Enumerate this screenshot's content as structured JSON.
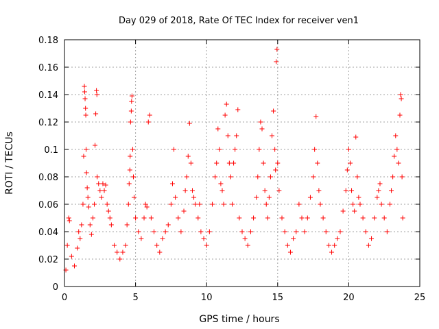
{
  "chart_data": {
    "type": "scatter",
    "title": "Day 029 of 2018, Rate Of TEC Index for receiver ven1",
    "xlabel": "GPS time / hours",
    "ylabel": "ROTI / TECUs",
    "xlim": [
      0,
      25
    ],
    "ylim": [
      0,
      0.18
    ],
    "xticks": [
      0,
      5,
      10,
      15,
      20,
      25
    ],
    "yticks": [
      0,
      0.02,
      0.04,
      0.06,
      0.08,
      0.1,
      0.12,
      0.14,
      0.16,
      0.18
    ],
    "xtick_labels": [
      "0",
      "5",
      "10",
      "15",
      "20",
      "25"
    ],
    "ytick_labels": [
      "0",
      "0.02",
      "0.04",
      "0.06",
      "0.08",
      "0.1",
      "0.12",
      "0.14",
      "0.16",
      "0.18"
    ],
    "grid": true,
    "marker": "+",
    "color": "#ff0000",
    "series": [
      {
        "points": [
          [
            0.1,
            0.012
          ],
          [
            0.2,
            0.03
          ],
          [
            0.3,
            0.05
          ],
          [
            0.35,
            0.048
          ],
          [
            0.5,
            0.022
          ],
          [
            0.7,
            0.015
          ],
          [
            0.9,
            0.028
          ],
          [
            1.0,
            0.04
          ],
          [
            1.1,
            0.035
          ],
          [
            1.2,
            0.045
          ],
          [
            1.3,
            0.06
          ],
          [
            1.35,
            0.095
          ],
          [
            1.4,
            0.146
          ],
          [
            1.42,
            0.142
          ],
          [
            1.45,
            0.137
          ],
          [
            1.48,
            0.13
          ],
          [
            1.5,
            0.125
          ],
          [
            1.52,
            0.1
          ],
          [
            1.55,
            0.083
          ],
          [
            1.6,
            0.072
          ],
          [
            1.65,
            0.065
          ],
          [
            1.7,
            0.058
          ],
          [
            1.8,
            0.045
          ],
          [
            1.9,
            0.038
          ],
          [
            2.0,
            0.05
          ],
          [
            2.1,
            0.06
          ],
          [
            2.15,
            0.103
          ],
          [
            2.2,
            0.126
          ],
          [
            2.25,
            0.143
          ],
          [
            2.28,
            0.14
          ],
          [
            2.3,
            0.08
          ],
          [
            2.4,
            0.075
          ],
          [
            2.5,
            0.07
          ],
          [
            2.6,
            0.065
          ],
          [
            2.7,
            0.075
          ],
          [
            2.8,
            0.07
          ],
          [
            2.9,
            0.074
          ],
          [
            3.0,
            0.06
          ],
          [
            3.1,
            0.055
          ],
          [
            3.2,
            0.05
          ],
          [
            3.3,
            0.045
          ],
          [
            3.5,
            0.03
          ],
          [
            3.7,
            0.025
          ],
          [
            3.9,
            0.02
          ],
          [
            4.1,
            0.025
          ],
          [
            4.3,
            0.03
          ],
          [
            4.4,
            0.045
          ],
          [
            4.5,
            0.06
          ],
          [
            4.55,
            0.075
          ],
          [
            4.6,
            0.085
          ],
          [
            4.62,
            0.095
          ],
          [
            4.65,
            0.12
          ],
          [
            4.7,
            0.128
          ],
          [
            4.72,
            0.135
          ],
          [
            4.75,
            0.139
          ],
          [
            4.8,
            0.1
          ],
          [
            4.85,
            0.08
          ],
          [
            4.9,
            0.065
          ],
          [
            5.0,
            0.05
          ],
          [
            5.2,
            0.04
          ],
          [
            5.4,
            0.035
          ],
          [
            5.6,
            0.05
          ],
          [
            5.7,
            0.06
          ],
          [
            5.8,
            0.058
          ],
          [
            5.9,
            0.12
          ],
          [
            6.0,
            0.125
          ],
          [
            6.1,
            0.05
          ],
          [
            6.3,
            0.04
          ],
          [
            6.5,
            0.03
          ],
          [
            6.7,
            0.025
          ],
          [
            6.9,
            0.035
          ],
          [
            7.1,
            0.04
          ],
          [
            7.3,
            0.045
          ],
          [
            7.5,
            0.06
          ],
          [
            7.6,
            0.075
          ],
          [
            7.7,
            0.1
          ],
          [
            7.8,
            0.065
          ],
          [
            8.0,
            0.05
          ],
          [
            8.2,
            0.04
          ],
          [
            8.4,
            0.055
          ],
          [
            8.5,
            0.07
          ],
          [
            8.6,
            0.08
          ],
          [
            8.7,
            0.095
          ],
          [
            8.8,
            0.119
          ],
          [
            8.9,
            0.09
          ],
          [
            9.0,
            0.07
          ],
          [
            9.1,
            0.065
          ],
          [
            9.2,
            0.06
          ],
          [
            9.4,
            0.05
          ],
          [
            9.5,
            0.06
          ],
          [
            9.6,
            0.04
          ],
          [
            9.8,
            0.035
          ],
          [
            10.0,
            0.03
          ],
          [
            10.2,
            0.04
          ],
          [
            10.4,
            0.06
          ],
          [
            10.6,
            0.08
          ],
          [
            10.7,
            0.09
          ],
          [
            10.8,
            0.115
          ],
          [
            10.9,
            0.1
          ],
          [
            11.0,
            0.075
          ],
          [
            11.1,
            0.07
          ],
          [
            11.2,
            0.06
          ],
          [
            11.3,
            0.125
          ],
          [
            11.4,
            0.133
          ],
          [
            11.5,
            0.11
          ],
          [
            11.6,
            0.09
          ],
          [
            11.7,
            0.08
          ],
          [
            11.8,
            0.06
          ],
          [
            11.9,
            0.09
          ],
          [
            12.0,
            0.1
          ],
          [
            12.1,
            0.11
          ],
          [
            12.2,
            0.129
          ],
          [
            12.3,
            0.05
          ],
          [
            12.5,
            0.04
          ],
          [
            12.7,
            0.035
          ],
          [
            12.9,
            0.03
          ],
          [
            13.1,
            0.04
          ],
          [
            13.3,
            0.05
          ],
          [
            13.5,
            0.065
          ],
          [
            13.6,
            0.08
          ],
          [
            13.7,
            0.1
          ],
          [
            13.8,
            0.12
          ],
          [
            13.9,
            0.115
          ],
          [
            14.0,
            0.09
          ],
          [
            14.1,
            0.07
          ],
          [
            14.2,
            0.06
          ],
          [
            14.3,
            0.05
          ],
          [
            14.4,
            0.065
          ],
          [
            14.5,
            0.08
          ],
          [
            14.6,
            0.11
          ],
          [
            14.7,
            0.128
          ],
          [
            14.8,
            0.1
          ],
          [
            14.85,
            0.085
          ],
          [
            14.9,
            0.164
          ],
          [
            14.95,
            0.173
          ],
          [
            15.0,
            0.09
          ],
          [
            15.1,
            0.07
          ],
          [
            15.3,
            0.05
          ],
          [
            15.5,
            0.04
          ],
          [
            15.7,
            0.03
          ],
          [
            15.9,
            0.025
          ],
          [
            16.1,
            0.035
          ],
          [
            16.3,
            0.04
          ],
          [
            16.5,
            0.06
          ],
          [
            16.7,
            0.05
          ],
          [
            16.9,
            0.04
          ],
          [
            17.1,
            0.05
          ],
          [
            17.3,
            0.065
          ],
          [
            17.5,
            0.08
          ],
          [
            17.6,
            0.1
          ],
          [
            17.7,
            0.124
          ],
          [
            17.8,
            0.09
          ],
          [
            17.9,
            0.07
          ],
          [
            18.0,
            0.06
          ],
          [
            18.2,
            0.05
          ],
          [
            18.4,
            0.04
          ],
          [
            18.6,
            0.03
          ],
          [
            18.8,
            0.025
          ],
          [
            19.0,
            0.03
          ],
          [
            19.2,
            0.035
          ],
          [
            19.4,
            0.04
          ],
          [
            19.6,
            0.055
          ],
          [
            19.8,
            0.07
          ],
          [
            19.9,
            0.085
          ],
          [
            20.0,
            0.1
          ],
          [
            20.1,
            0.09
          ],
          [
            20.2,
            0.07
          ],
          [
            20.3,
            0.06
          ],
          [
            20.4,
            0.055
          ],
          [
            20.5,
            0.109
          ],
          [
            20.6,
            0.08
          ],
          [
            20.7,
            0.065
          ],
          [
            20.8,
            0.06
          ],
          [
            21.0,
            0.05
          ],
          [
            21.2,
            0.04
          ],
          [
            21.4,
            0.03
          ],
          [
            21.6,
            0.035
          ],
          [
            21.8,
            0.05
          ],
          [
            22.0,
            0.065
          ],
          [
            22.1,
            0.07
          ],
          [
            22.2,
            0.075
          ],
          [
            22.3,
            0.06
          ],
          [
            22.5,
            0.05
          ],
          [
            22.7,
            0.04
          ],
          [
            22.9,
            0.06
          ],
          [
            23.0,
            0.07
          ],
          [
            23.1,
            0.08
          ],
          [
            23.2,
            0.095
          ],
          [
            23.3,
            0.11
          ],
          [
            23.4,
            0.1
          ],
          [
            23.5,
            0.09
          ],
          [
            23.6,
            0.125
          ],
          [
            23.65,
            0.14
          ],
          [
            23.7,
            0.137
          ],
          [
            23.75,
            0.08
          ],
          [
            23.8,
            0.05
          ]
        ]
      }
    ]
  }
}
